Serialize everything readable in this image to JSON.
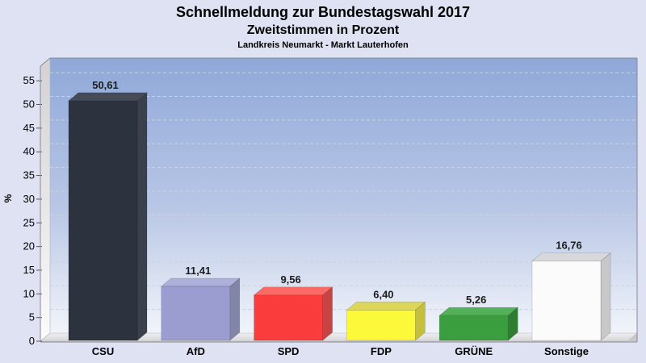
{
  "header": {
    "title": "Schnellmeldung zur Bundestagswahl 2017",
    "subtitle": "Zweitstimmen in Prozent",
    "region": "Landkreis Neumarkt - Markt Lauterhofen"
  },
  "chart_data": {
    "type": "bar",
    "style": "3d-column",
    "title": "Schnellmeldung zur Bundestagswahl 2017",
    "subtitle": "Zweitstimmen in Prozent",
    "region_label": "Landkreis Neumarkt - Markt Lauterhofen",
    "categories": [
      "CSU",
      "AfD",
      "SPD",
      "FDP",
      "GRÜNE",
      "Sonstige"
    ],
    "values": [
      50.61,
      11.41,
      9.56,
      6.4,
      5.26,
      16.76
    ],
    "value_labels": [
      "50,61",
      "11,41",
      "9,56",
      "6,40",
      "5,26",
      "16,76"
    ],
    "bar_face_colors": [
      {
        "front": "#2d333e",
        "top": "#454c57",
        "side": "#3a414c"
      },
      {
        "front": "#9b9dd0",
        "top": "#aeb0dc",
        "side": "#8385a8"
      },
      {
        "front": "#fb3c3c",
        "top": "#f96a66",
        "side": "#c64444"
      },
      {
        "front": "#fbf93a",
        "top": "#dcd65b",
        "side": "#c5bf3e"
      },
      {
        "front": "#3a9e3e",
        "top": "#55b159",
        "side": "#2e7d32"
      },
      {
        "front": "#fbfbfc",
        "top": "#d8d8da",
        "side": "#c8c8ca"
      }
    ],
    "ylabel": "%",
    "ylim": [
      0,
      57.5
    ],
    "yticks": [
      0,
      5,
      10,
      15,
      20,
      25,
      30,
      35,
      40,
      45,
      50,
      55
    ],
    "grid": "dashed horizontal",
    "legend": "none",
    "plot_bg_gradient": [
      "#8fa8d8",
      "#b9c7e6",
      "#f1f4fa"
    ],
    "wall_gradient": [
      "#d2d2d4",
      "#fbfbfc"
    ],
    "floor_gradient": [
      "#efeff1",
      "#d6d6d8"
    ],
    "page_bg": "#dee2f2",
    "frame_color": "#8a8a92",
    "gridline_color": "#ccd3de",
    "tick_color": "#55555a",
    "label_color": "#1c1c1c"
  }
}
